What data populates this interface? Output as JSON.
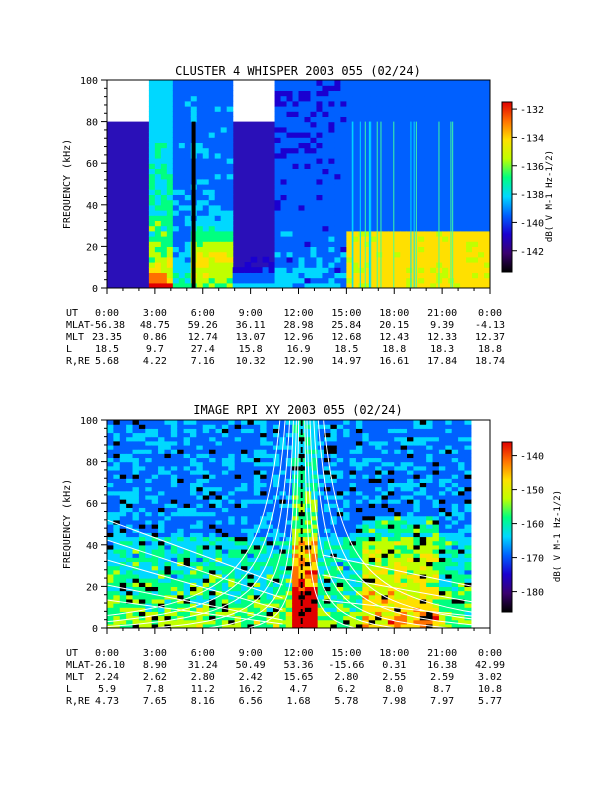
{
  "chart_data": [
    {
      "type": "heatmap",
      "title": "CLUSTER 4 WHISPER 2003 055 (02/24)",
      "ylabel": "FREQUENCY (kHz)",
      "ylim": [
        0,
        100
      ],
      "yticks": [
        "0",
        "20",
        "40",
        "60",
        "80",
        "100"
      ],
      "colorbar": {
        "label": "dB( V M-1 Hz-1/2)",
        "range": [
          -143.5,
          -131.5
        ],
        "ticks": [
          "-132",
          "-134",
          "-136",
          "-138",
          "-140",
          "-142"
        ],
        "colors": [
          "#000000",
          "#3a0070",
          "#1a00d0",
          "#0060ff",
          "#00d8ff",
          "#00ff80",
          "#c0ff00",
          "#ffe000",
          "#ff7000",
          "#e00000"
        ]
      },
      "ephemeris": {
        "labels": [
          "UT",
          "MLAT",
          "MLT",
          "L",
          "R,RE"
        ],
        "UT": [
          "0:00",
          "3:00",
          "6:00",
          "9:00",
          "12:00",
          "15:00",
          "18:00",
          "21:00",
          "0:00"
        ],
        "MLAT": [
          "-56.38",
          "48.75",
          "59.26",
          "36.11",
          "28.98",
          "25.84",
          "20.15",
          "9.39",
          "-4.13"
        ],
        "MLT": [
          "23.35",
          "0.86",
          "12.74",
          "13.07",
          "12.96",
          "12.68",
          "12.43",
          "12.33",
          "12.37"
        ],
        "L": [
          "18.5",
          "9.7",
          "27.4",
          "15.8",
          "16.9",
          "18.5",
          "18.8",
          "18.3",
          "18.8"
        ],
        "R,RE": [
          "5.68",
          "4.22",
          "7.16",
          "10.32",
          "12.90",
          "14.97",
          "16.61",
          "17.84",
          "18.74"
        ]
      }
    },
    {
      "type": "heatmap",
      "title": "IMAGE RPI XY 2003 055 (02/24)",
      "ylabel": "FREQUENCY (kHz)",
      "ylim": [
        0,
        100
      ],
      "yticks": [
        "0",
        "20",
        "40",
        "60",
        "80",
        "100"
      ],
      "colorbar": {
        "label": "dB( V M-1 Hz-1/2)",
        "range": [
          -186,
          -136
        ],
        "ticks": [
          "-140",
          "-150",
          "-160",
          "-170",
          "-180"
        ],
        "colors": [
          "#000000",
          "#3a0070",
          "#1a00d0",
          "#0060ff",
          "#00d8ff",
          "#00ff80",
          "#c0ff00",
          "#ffe000",
          "#ff7000",
          "#e00000"
        ]
      },
      "ephemeris": {
        "labels": [
          "UT",
          "MLAT",
          "MLT",
          "L",
          "R,RE"
        ],
        "UT": [
          "0:00",
          "3:00",
          "6:00",
          "9:00",
          "12:00",
          "15:00",
          "18:00",
          "21:00",
          "0:00"
        ],
        "MLAT": [
          "-26.10",
          "8.90",
          "31.24",
          "50.49",
          "53.36",
          "-15.66",
          "0.31",
          "16.38",
          "42.99"
        ],
        "MLT": [
          "2.24",
          "2.62",
          "2.80",
          "2.42",
          "15.65",
          "2.80",
          "2.55",
          "2.59",
          "3.02"
        ],
        "L": [
          "5.9",
          "7.8",
          "11.2",
          "16.2",
          "4.7",
          "6.2",
          "8.0",
          "8.7",
          "10.8"
        ],
        "R,RE": [
          "4.73",
          "7.65",
          "8.16",
          "6.56",
          "1.68",
          "5.78",
          "7.98",
          "7.97",
          "5.77"
        ]
      }
    }
  ]
}
